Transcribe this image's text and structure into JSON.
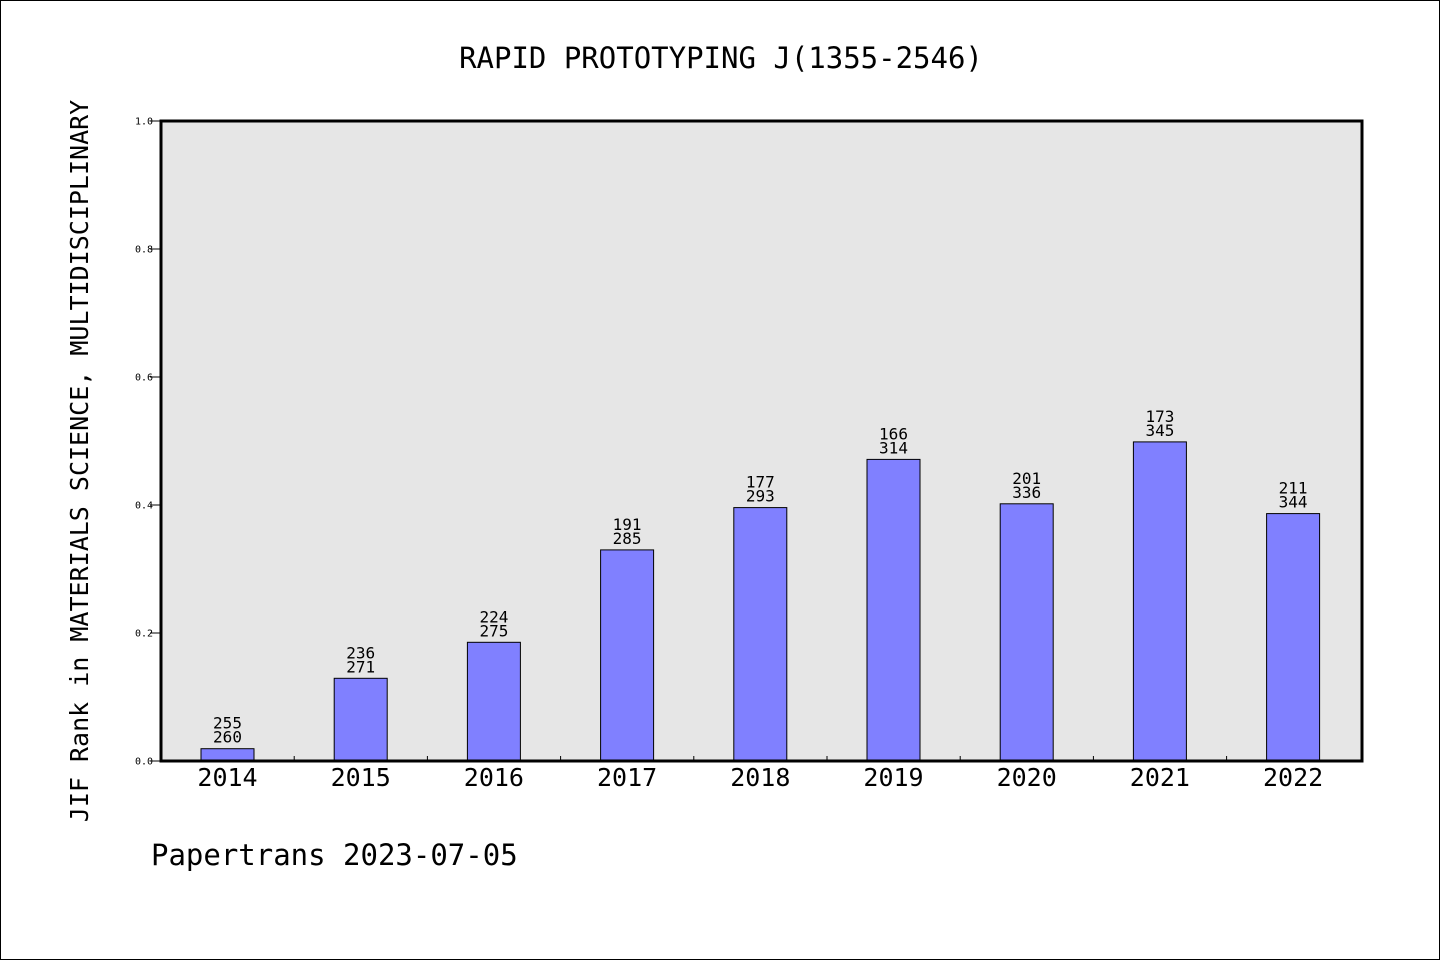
{
  "chart_data": {
    "type": "bar",
    "title": "RAPID PROTOTYPING J(1355-2546)",
    "ylabel": "JIF Rank in MATERIALS SCIENCE, MULTIDISCIPLINARY",
    "xlabel": "",
    "categories": [
      "2014",
      "2015",
      "2016",
      "2017",
      "2018",
      "2019",
      "2020",
      "2021",
      "2022"
    ],
    "values": [
      0.0192,
      0.1292,
      0.1855,
      0.3298,
      0.3959,
      0.4713,
      0.4018,
      0.4986,
      0.3866
    ],
    "labels_top": [
      "255",
      "236",
      "224",
      "191",
      "177",
      "166",
      "201",
      "173",
      "211"
    ],
    "labels_bottom": [
      "260",
      "271",
      "275",
      "285",
      "293",
      "314",
      "336",
      "345",
      "344"
    ],
    "ylim": [
      0,
      1
    ],
    "yticks": [
      "0.0",
      "0.2",
      "0.4",
      "0.6",
      "0.8",
      "1.0"
    ],
    "grid": false,
    "colors": {
      "bar": "#8080ff",
      "plot_background": "#e6e6e6",
      "edge": "#000000"
    },
    "footer": "Papertrans 2023-07-05"
  }
}
